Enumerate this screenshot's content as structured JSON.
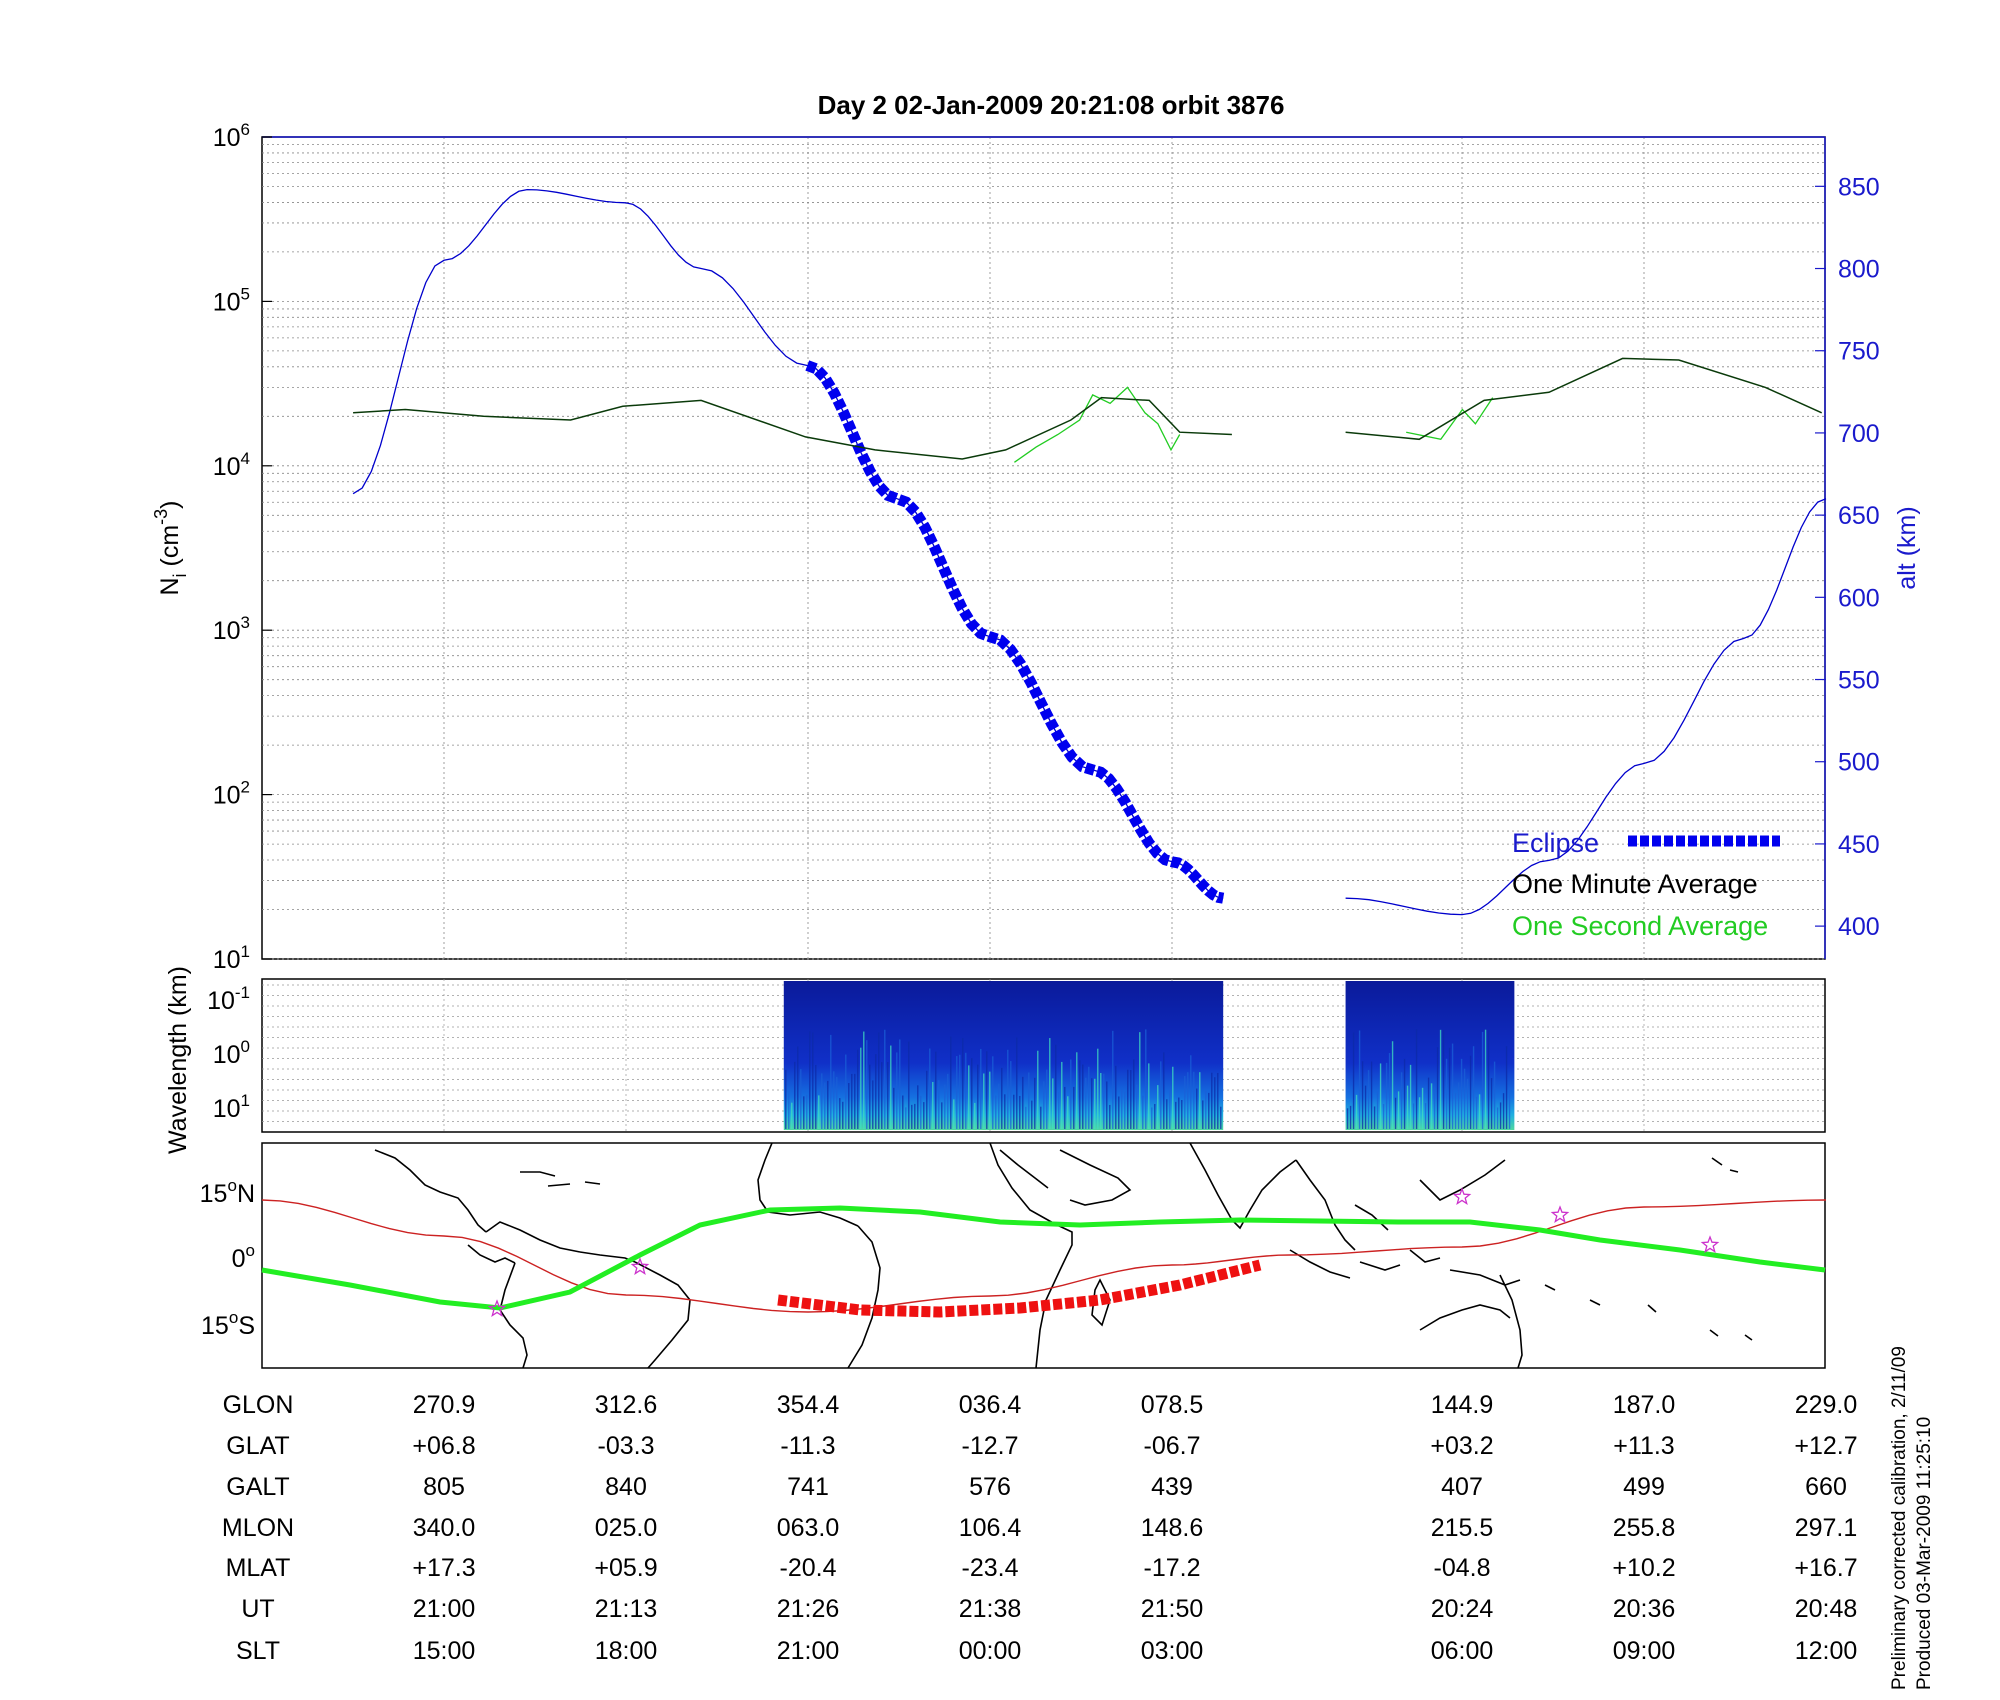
{
  "title": "Day 2  02-Jan-2009 20:21:08   orbit 3876",
  "panels": {
    "density": {
      "ylabel_left": "N",
      "ylabel_left_sub": "i",
      "ylabel_left_unit_open": " (cm",
      "ylabel_left_unit_exp": "-3",
      "ylabel_left_unit_close": ")",
      "ylabel_right": "alt (km)",
      "y_ticks": [
        {
          "base": "10",
          "exp": "6"
        },
        {
          "base": "10",
          "exp": "5"
        },
        {
          "base": "10",
          "exp": "4"
        },
        {
          "base": "10",
          "exp": "3"
        },
        {
          "base": "10",
          "exp": "2"
        },
        {
          "base": "10",
          "exp": "1"
        }
      ],
      "right_ticks": [
        "850",
        "800",
        "750",
        "700",
        "650",
        "600",
        "550",
        "500",
        "450",
        "400"
      ],
      "legend": {
        "eclipse": "Eclipse",
        "one_minute": "One Minute Average",
        "one_second": "One Second Average"
      }
    },
    "wavelength": {
      "ylabel": "Wavelength (km)",
      "y_ticks": [
        {
          "base": "10",
          "exp": "-1"
        },
        {
          "base": "10",
          "exp": "0"
        },
        {
          "base": "10",
          "exp": "1"
        }
      ]
    },
    "map": {
      "y_ticks": [
        {
          "num": "15",
          "deg": "o",
          "dir": "N"
        },
        {
          "num": "0",
          "deg": "o",
          "dir": ""
        },
        {
          "num": "15",
          "deg": "o",
          "dir": "S"
        }
      ]
    }
  },
  "table": {
    "row_labels": [
      "GLON",
      "GLAT",
      "GALT",
      "MLON",
      "MLAT",
      "UT",
      "SLT"
    ],
    "columns": [
      [
        "270.9",
        "+06.8",
        "805",
        "340.0",
        "+17.3",
        "21:00",
        "15:00"
      ],
      [
        "312.6",
        "-03.3",
        "840",
        "025.0",
        "+05.9",
        "21:13",
        "18:00"
      ],
      [
        "354.4",
        "-11.3",
        "741",
        "063.0",
        "-20.4",
        "21:26",
        "21:00"
      ],
      [
        "036.4",
        "-12.7",
        "576",
        "106.4",
        "-23.4",
        "21:38",
        "00:00"
      ],
      [
        "078.5",
        "-06.7",
        "439",
        "148.6",
        "-17.2",
        "21:50",
        "03:00"
      ],
      [
        "144.9",
        "+03.2",
        "407",
        "215.5",
        "-04.8",
        "20:24",
        "06:00"
      ],
      [
        "187.0",
        "+11.3",
        "499",
        "255.8",
        "+10.2",
        "20:36",
        "09:00"
      ],
      [
        "229.0",
        "+12.7",
        "660",
        "297.1",
        "+16.7",
        "20:48",
        "12:00"
      ]
    ]
  },
  "footer": {
    "line1": "Preliminary corrected calibration, 2/11/09",
    "line2": "Produced 03-Mar-2009 11:25:10"
  },
  "colors": {
    "altitude": "#0000cc",
    "eclipse": "#0000ee",
    "one_minute": "#0a3a0a",
    "one_second": "#22cc22",
    "ground_track": "#cc2222",
    "eclipse_track": "#ee1111",
    "magnetic_equator": "#22ee22",
    "stars": "#cc33cc"
  },
  "chart_data": {
    "type": "line",
    "x_column_glon": [
      270.9,
      312.6,
      354.4,
      36.4,
      78.5,
      144.9,
      187.0,
      229.0
    ],
    "series": [
      {
        "name": "One Minute Average",
        "x_glon": [
          250,
          262,
          280,
          300,
          312,
          330,
          354,
          10,
          30,
          40,
          55,
          62,
          73,
          80,
          92,
          118,
          135,
          150,
          165,
          182,
          195,
          215,
          228
        ],
        "y_ni": [
          21000,
          22000,
          20000,
          19000,
          23000,
          25000,
          15000,
          12500,
          11000,
          12500,
          19000,
          26000,
          25000,
          16000,
          15500,
          16000,
          14500,
          25000,
          28000,
          45000,
          44000,
          30000,
          21000
        ]
      },
      {
        "name": "One Second Average",
        "x_glon": [
          42,
          47,
          52,
          57,
          60,
          64,
          68,
          72,
          75,
          78,
          80,
          132,
          140,
          145,
          148,
          152
        ],
        "y_ni": [
          10500,
          13000,
          15500,
          19000,
          27000,
          24000,
          30000,
          21000,
          18000,
          12500,
          15500,
          16000,
          14500,
          22000,
          18000,
          26000
        ]
      },
      {
        "axis": "right",
        "x_glon": [
          250,
          270.9,
          290,
          312.6,
          330,
          354.4,
          15,
          36.4,
          60,
          78.5,
          90,
          118,
          144.9,
          165,
          187.0,
          210,
          229.0
        ],
        "y_alt_km": [
          663,
          805,
          848,
          840,
          800,
          741,
          660,
          576,
          495,
          439,
          417,
          417,
          407,
          440,
          499,
          575,
          660
        ]
      }
    ],
    "eclipse_glon_range": [
      350,
      86
    ],
    "spectrogram_glon_ranges": [
      [
        349,
        90
      ],
      [
        118,
        157
      ]
    ],
    "ylabel_left": "N  (cm  )",
    "ylabel_right": "alt (km)",
    "ylim_left": [
      10,
      1000000
    ],
    "yscale_left": "log",
    "ylim_right": [
      380,
      880
    ],
    "grid": true,
    "legend_position": "bottom-right"
  }
}
